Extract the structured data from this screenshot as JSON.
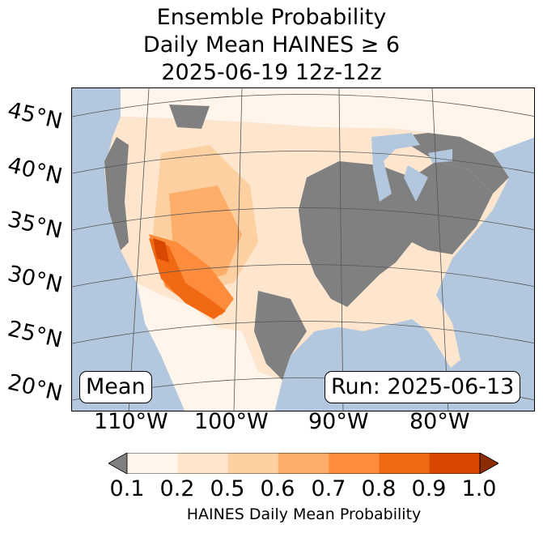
{
  "title": {
    "line1": "Ensemble Probability",
    "line2": "Daily Mean HAINES ≥ 6",
    "line3": "2025-06-19 12z-12z"
  },
  "map": {
    "latitude_labels": [
      "45°N",
      "40°N",
      "35°N",
      "30°N",
      "25°N",
      "20°N"
    ],
    "longitude_labels": [
      "110°W",
      "100°W",
      "90°W",
      "80°W"
    ],
    "mean_label": "Mean",
    "run_label": "Run: 2025-06-13",
    "colors": {
      "ocean": "#b3c8df",
      "below_threshold": "#808080",
      "prob_0_1": "#fff5eb",
      "prob_0_2": "#fee6ce",
      "prob_0_5": "#fdd0a2",
      "prob_0_6": "#fdae6b",
      "prob_0_7": "#fd8d3c",
      "prob_0_8": "#f16913",
      "prob_0_9": "#d94801",
      "prob_1_0": "#8c2d04"
    }
  },
  "colorbar": {
    "ticks": [
      "0.1",
      "0.2",
      "0.5",
      "0.6",
      "0.7",
      "0.8",
      "0.9",
      "1.0"
    ],
    "colors": [
      "#fff5eb",
      "#fee6ce",
      "#fdd0a2",
      "#fdae6b",
      "#fd8d3c",
      "#f16913",
      "#d94801"
    ],
    "under_color": "#808080",
    "over_color": "#8c2d04",
    "label": "HAINES Daily Mean Probability"
  }
}
